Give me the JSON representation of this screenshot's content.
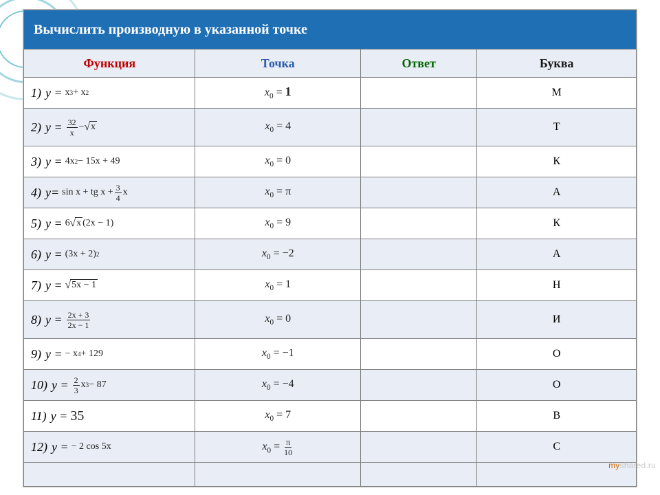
{
  "colors": {
    "title_bg": "#1f6fb5",
    "title_text": "#ffffff",
    "band_bg": "#e9edf5",
    "border": "#7f7f7f",
    "accent_ring": "#62bbcb",
    "head_func": "#c00000",
    "head_point": "#2d5ba9",
    "head_ans": "#006600",
    "head_letter": "#191919"
  },
  "title": "Вычислить производную в указанной точке",
  "headers": {
    "func": "Функция",
    "point": "Точка",
    "answer": "Ответ",
    "letter": "Буква"
  },
  "rows": [
    {
      "idx": "1)",
      "y": "у =",
      "expr_html": "x<sup>3</sup> + x<sup>2</sup>",
      "point_html": "<span class='x0'>x</span><sub>0</sub> = <span class='big'>1</span>",
      "letter": "М",
      "taller": false
    },
    {
      "idx": "2)",
      "y": "у =",
      "expr_html": "<span class='frac'><span class='num'>32</span><span class='den'>x</span></span> − <span class='sqrt'><span class='rad'>x</span></span>",
      "point_html": "<span class='x0'>x</span><sub>0</sub> = 4",
      "letter": "Т",
      "taller": true
    },
    {
      "idx": "3)",
      "y": "у =",
      "expr_html": "4x<sup>2</sup> − 15x + 49",
      "point_html": "<span class='x0'>x</span><sub>0</sub> = 0",
      "letter": "К",
      "taller": false
    },
    {
      "idx": "4)",
      "y": "у=",
      "expr_html": "sin x + tg x + <span class='frac'><span class='num'>3</span><span class='den'>4</span></span> x",
      "point_html": "<span class='x0'>x</span><sub>0</sub> = <span class='pi'>π</span>",
      "letter": "А",
      "taller": false
    },
    {
      "idx": "5)",
      "y": "у =",
      "expr_html": "6<span class='sqrt'><span class='rad'>x</span></span>(2x − 1)",
      "point_html": "<span class='x0'>x</span><sub>0</sub> = 9",
      "letter": "К",
      "taller": false
    },
    {
      "idx": "6)",
      "y": "у =",
      "expr_html": "(3x + 2)<sup>2</sup>",
      "point_html": "<span class='x0'>x</span><sub>0</sub> = −2",
      "letter": "А",
      "taller": false
    },
    {
      "idx": "7)",
      "y": "у =",
      "expr_html": "<span class='sqrt'><span class='rad'>5x − 1</span></span>",
      "point_html": "<span class='x0'>x</span><sub>0</sub> = 1",
      "letter": "Н",
      "taller": false
    },
    {
      "idx": "8)",
      "y": "у =",
      "expr_html": "<span class='frac'><span class='num'>2x + 3</span><span class='den'>2x − 1</span></span>",
      "point_html": "<span class='x0'>x</span><sub>0</sub> = 0",
      "letter": "И",
      "taller": true
    },
    {
      "idx": "9)",
      "y": "у =",
      "expr_html": "− x<sup>4</sup> + 129",
      "point_html": "<span class='x0'>x</span><sub>0</sub> = −1",
      "letter": "О",
      "taller": false
    },
    {
      "idx": "10)",
      "y": "у =",
      "expr_html": "<span class='frac'><span class='num'>2</span><span class='den'>3</span></span> x<sup>3</sup> − 87",
      "point_html": "<span class='x0'>x</span><sub>0</sub> = −4",
      "letter": "О",
      "taller": false
    },
    {
      "idx": "11)",
      "y": "у =",
      "expr_html": "<span style='font-size:20px'>35</span>",
      "point_html": "<span class='x0'>x</span><sub>0</sub> = 7",
      "letter": "В",
      "taller": false
    },
    {
      "idx": "12)",
      "y": "у =",
      "expr_html": "− 2 cos 5x",
      "point_html": "<span class='x0'>x</span><sub>0</sub> = <span class='frac'><span class='num pi'>π</span><span class='den'>10</span></span>",
      "letter": "С",
      "taller": false
    }
  ],
  "watermark": {
    "prefix": "my",
    "rest": "shared.ru"
  }
}
